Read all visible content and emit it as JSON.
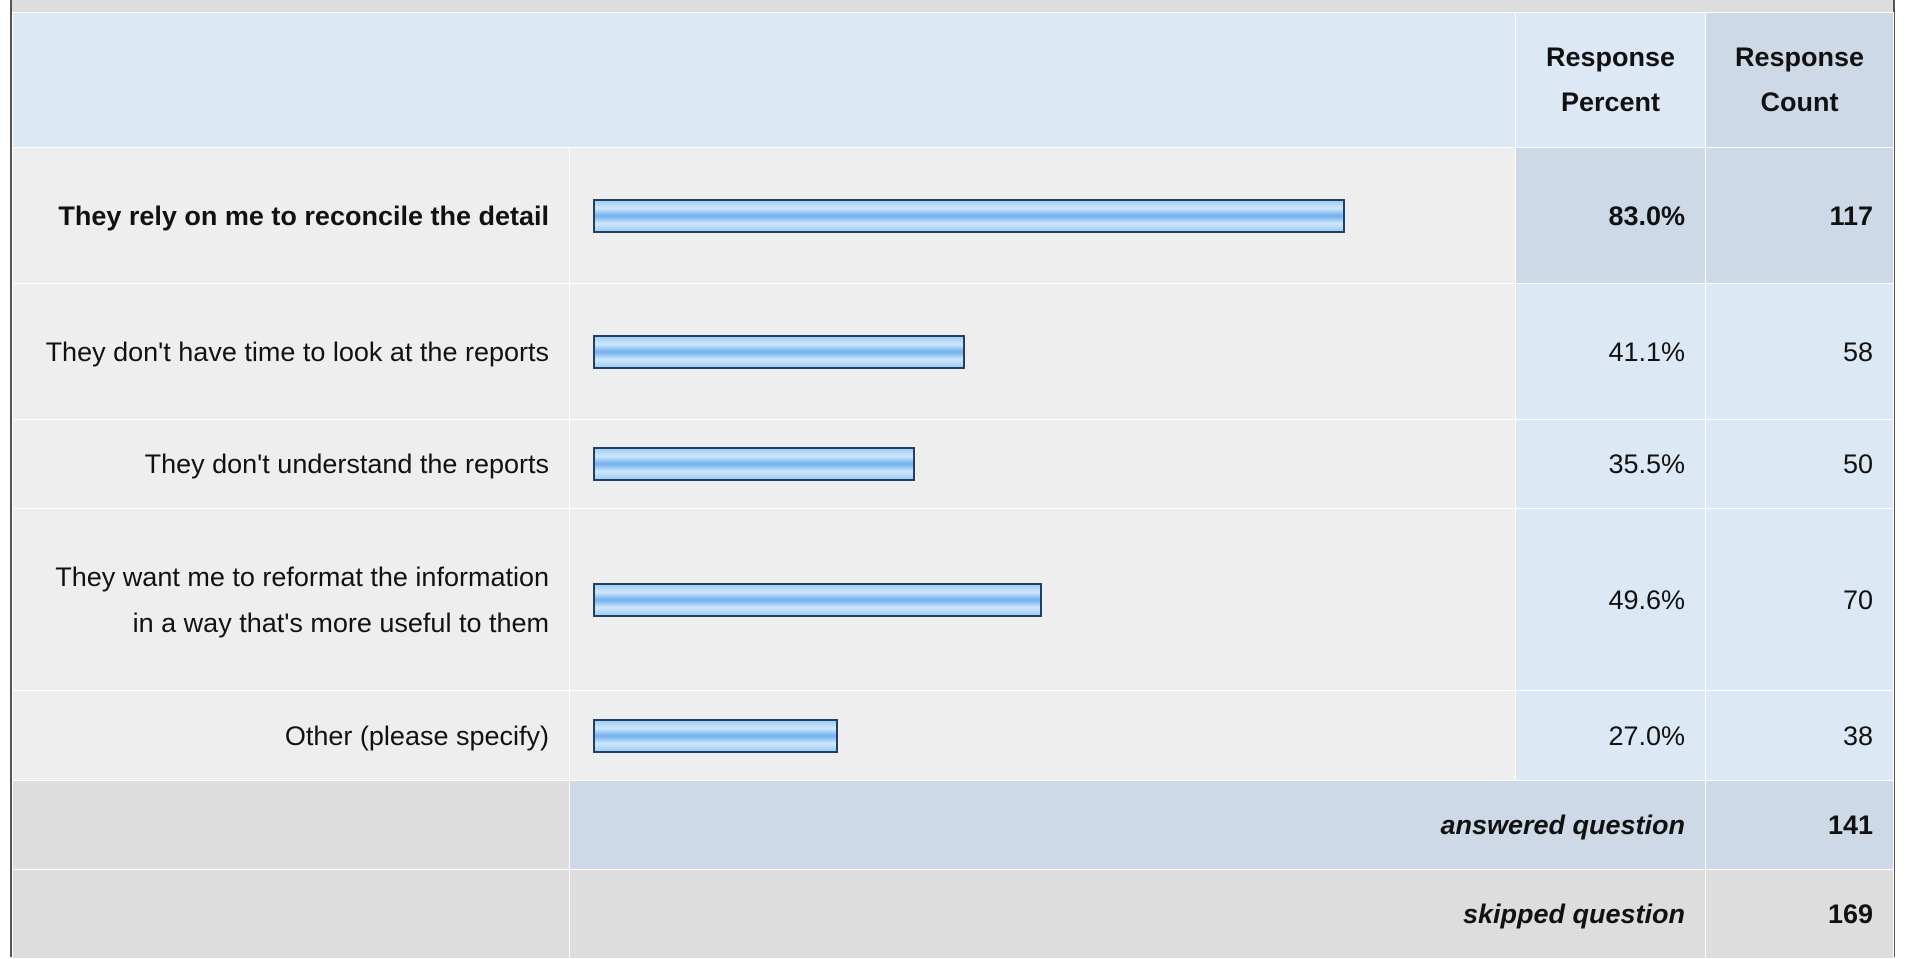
{
  "table": {
    "columns": [
      "Response Percent",
      "Response Count"
    ],
    "rows": [
      {
        "label": "They rely on me to reconcile the detail",
        "percent": {
          "value": 83.0,
          "label": "83.0%"
        },
        "count": 117,
        "bold": true
      },
      {
        "label": "They don't have time to look at the reports",
        "percent": {
          "value": 41.1,
          "label": "41.1%"
        },
        "count": 58
      },
      {
        "label": "They don't understand the reports",
        "percent": {
          "value": 35.5,
          "label": "35.5%"
        },
        "count": 50
      },
      {
        "label": "They want me to reformat the information in a way that's more useful to them",
        "percent": {
          "value": 49.6,
          "label": "49.6%"
        },
        "count": 70
      },
      {
        "label": "Other (please specify)",
        "percent": {
          "value": 27.0,
          "label": "27.0%"
        },
        "count": 38
      }
    ],
    "summary": [
      {
        "label": "answered question",
        "count": 141
      },
      {
        "label": "skipped question",
        "count": 169
      }
    ]
  }
}
